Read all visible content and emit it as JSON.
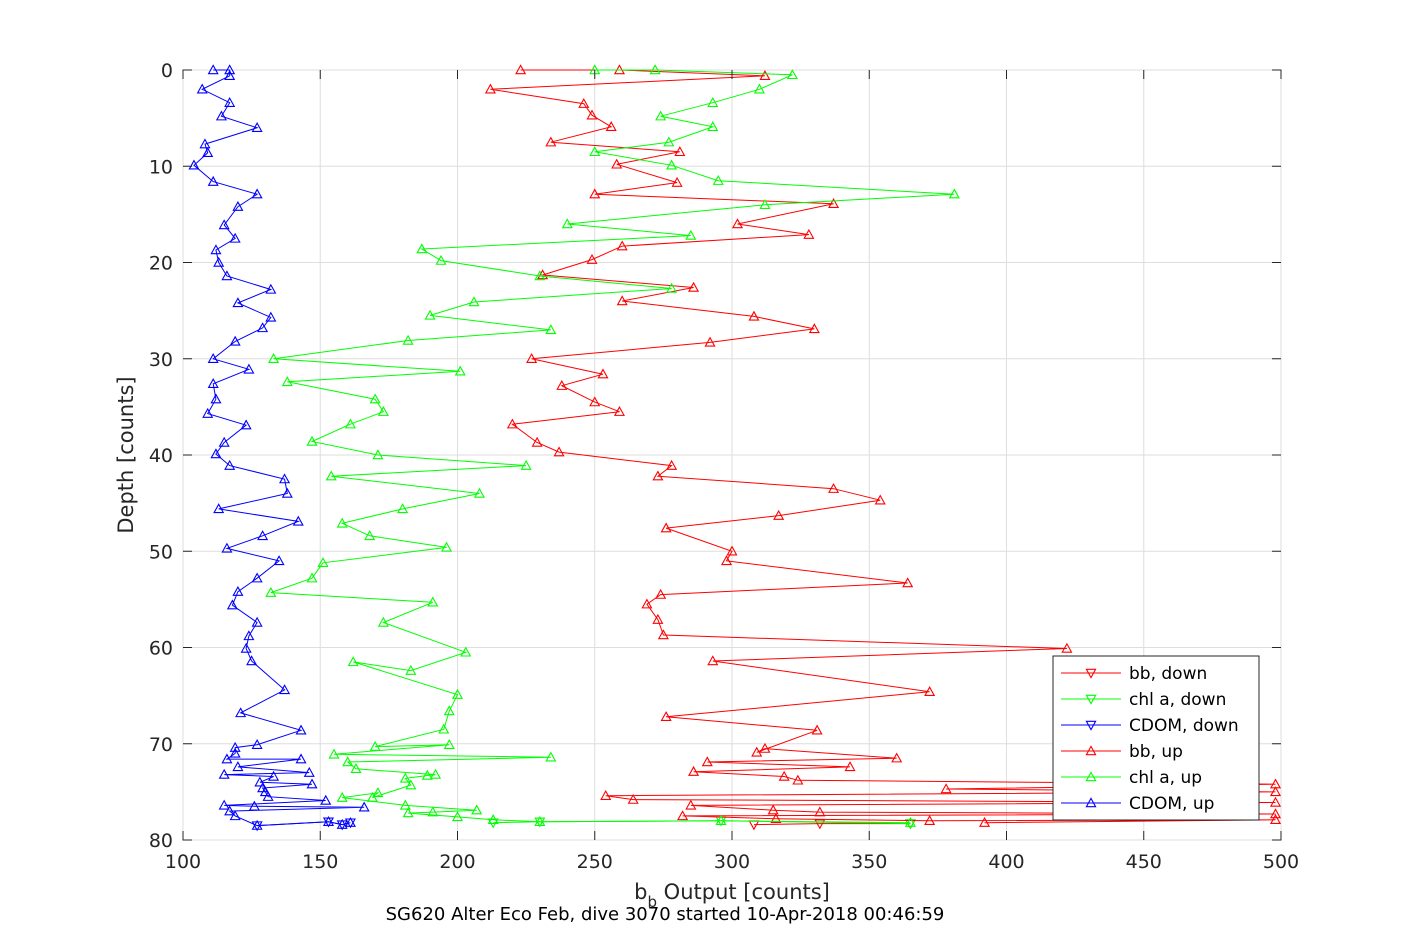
{
  "chart_data": {
    "type": "line",
    "xlabel_main": "b",
    "xlabel_sub": "b",
    "xlabel_rest": " Output [counts]",
    "ylabel": "Depth [counts]",
    "subtitle": "SG620 Alter Eco Feb, dive 3070 started 10-Apr-2018 00:46:59",
    "xlim": [
      100,
      500
    ],
    "ylim": [
      0,
      80
    ],
    "y_reversed": true,
    "grid": true,
    "legend_position": "bottom-right",
    "x_ticks": [
      100,
      150,
      200,
      250,
      300,
      350,
      400,
      450,
      500
    ],
    "y_ticks": [
      0,
      10,
      20,
      30,
      40,
      50,
      60,
      70,
      80
    ],
    "series": [
      {
        "name": "bb, down",
        "color": "#ff0000",
        "marker": "down",
        "points": [
          [
            308,
            78.4
          ],
          [
            332,
            78.3
          ],
          [
            365,
            78.3
          ]
        ]
      },
      {
        "name": "chl a, down",
        "color": "#00ff00",
        "marker": "down",
        "points": [
          [
            213,
            78.2
          ],
          [
            230,
            78.1
          ],
          [
            296,
            78.0
          ],
          [
            365,
            78.3
          ]
        ]
      },
      {
        "name": "CDOM, down",
        "color": "#0000ff",
        "marker": "down",
        "points": [
          [
            127,
            78.5
          ],
          [
            153,
            78.1
          ],
          [
            158,
            78.4
          ],
          [
            161,
            78.2
          ]
        ]
      },
      {
        "name": "bb, up",
        "color": "#ff0000",
        "marker": "up",
        "points": [
          [
            392,
            78.2
          ],
          [
            498,
            77.9
          ],
          [
            372,
            78.0
          ],
          [
            316,
            77.8
          ],
          [
            282,
            77.5
          ],
          [
            498,
            77.3
          ],
          [
            332,
            77.1
          ],
          [
            315,
            76.9
          ],
          [
            285,
            76.4
          ],
          [
            498,
            76.1
          ],
          [
            264,
            75.8
          ],
          [
            254,
            75.4
          ],
          [
            498,
            75.0
          ],
          [
            378,
            74.7
          ],
          [
            498,
            74.2
          ],
          [
            324,
            73.8
          ],
          [
            319,
            73.4
          ],
          [
            286,
            72.9
          ],
          [
            343,
            72.4
          ],
          [
            291,
            71.9
          ],
          [
            360,
            71.5
          ],
          [
            312,
            70.5
          ],
          [
            309,
            70.9
          ],
          [
            331,
            68.6
          ],
          [
            276,
            67.2
          ],
          [
            372,
            64.6
          ],
          [
            293,
            61.4
          ],
          [
            422,
            60.1
          ],
          [
            275,
            58.7
          ],
          [
            273,
            57.1
          ],
          [
            269,
            55.5
          ],
          [
            274,
            54.5
          ],
          [
            364,
            53.3
          ],
          [
            298,
            51.0
          ],
          [
            300,
            50.0
          ],
          [
            276,
            47.6
          ],
          [
            317,
            46.3
          ],
          [
            354,
            44.7
          ],
          [
            337,
            43.5
          ],
          [
            273,
            42.2
          ],
          [
            278,
            41.1
          ],
          [
            237,
            39.7
          ],
          [
            229,
            38.7
          ],
          [
            220,
            36.8
          ],
          [
            259,
            35.5
          ],
          [
            250,
            34.5
          ],
          [
            238,
            32.8
          ],
          [
            253,
            31.6
          ],
          [
            227,
            30.0
          ],
          [
            292,
            28.3
          ],
          [
            330,
            26.9
          ],
          [
            308,
            25.6
          ],
          [
            260,
            24.0
          ],
          [
            286,
            22.6
          ],
          [
            231,
            21.3
          ],
          [
            249,
            19.7
          ],
          [
            260,
            18.3
          ],
          [
            328,
            17.1
          ],
          [
            302,
            16.0
          ],
          [
            337,
            13.9
          ],
          [
            250,
            12.9
          ],
          [
            280,
            11.7
          ],
          [
            258,
            9.8
          ],
          [
            281,
            8.5
          ],
          [
            234,
            7.5
          ],
          [
            256,
            5.9
          ],
          [
            249,
            4.7
          ],
          [
            246,
            3.5
          ],
          [
            212,
            2.0
          ],
          [
            312,
            0.6
          ],
          [
            259,
            0.0
          ],
          [
            223,
            0.0
          ]
        ]
      },
      {
        "name": "chl a, up",
        "color": "#00ff00",
        "marker": "up",
        "points": [
          [
            365,
            78.2
          ],
          [
            296,
            78.0
          ],
          [
            230,
            78.1
          ],
          [
            213,
            77.9
          ],
          [
            200,
            77.6
          ],
          [
            182,
            77.2
          ],
          [
            191,
            77.1
          ],
          [
            207,
            76.9
          ],
          [
            181,
            76.4
          ],
          [
            158,
            75.6
          ],
          [
            171,
            75.1
          ],
          [
            169,
            75.6
          ],
          [
            183,
            74.3
          ],
          [
            181,
            73.6
          ],
          [
            189,
            73.3
          ],
          [
            192,
            73.2
          ],
          [
            163,
            72.6
          ],
          [
            160,
            71.9
          ],
          [
            234,
            71.4
          ],
          [
            155,
            71.1
          ],
          [
            197,
            70.1
          ],
          [
            170,
            70.3
          ],
          [
            195,
            68.5
          ],
          [
            197,
            66.6
          ],
          [
            200,
            64.9
          ],
          [
            162,
            61.5
          ],
          [
            183,
            62.4
          ],
          [
            203,
            60.5
          ],
          [
            173,
            57.4
          ],
          [
            191,
            55.3
          ],
          [
            132,
            54.3
          ],
          [
            147,
            52.8
          ],
          [
            151,
            51.2
          ],
          [
            196,
            49.6
          ],
          [
            168,
            48.4
          ],
          [
            158,
            47.1
          ],
          [
            180,
            45.6
          ],
          [
            208,
            44.0
          ],
          [
            154,
            42.2
          ],
          [
            225,
            41.1
          ],
          [
            171,
            40.0
          ],
          [
            147,
            38.6
          ],
          [
            161,
            36.8
          ],
          [
            173,
            35.5
          ],
          [
            170,
            34.2
          ],
          [
            138,
            32.4
          ],
          [
            201,
            31.3
          ],
          [
            133,
            30.0
          ],
          [
            182,
            28.1
          ],
          [
            234,
            27.0
          ],
          [
            190,
            25.5
          ],
          [
            206,
            24.1
          ],
          [
            278,
            22.7
          ],
          [
            230,
            21.4
          ],
          [
            194,
            19.8
          ],
          [
            187,
            18.6
          ],
          [
            285,
            17.2
          ],
          [
            240,
            16.0
          ],
          [
            312,
            14.0
          ],
          [
            381,
            12.9
          ],
          [
            295,
            11.5
          ],
          [
            278,
            9.9
          ],
          [
            250,
            8.5
          ],
          [
            277,
            7.5
          ],
          [
            293,
            5.9
          ],
          [
            274,
            4.8
          ],
          [
            293,
            3.4
          ],
          [
            310,
            2.0
          ],
          [
            322,
            0.5
          ],
          [
            272,
            0.0
          ],
          [
            250,
            0.0
          ]
        ]
      },
      {
        "name": "CDOM, up",
        "color": "#0000ff",
        "marker": "up",
        "points": [
          [
            161,
            78.2
          ],
          [
            158,
            78.4
          ],
          [
            153,
            78.1
          ],
          [
            127,
            78.5
          ],
          [
            119,
            77.5
          ],
          [
            117,
            77.0
          ],
          [
            166,
            76.6
          ],
          [
            126,
            76.5
          ],
          [
            115,
            76.4
          ],
          [
            152,
            75.9
          ],
          [
            131,
            75.5
          ],
          [
            130,
            75.0
          ],
          [
            129,
            74.6
          ],
          [
            147,
            74.2
          ],
          [
            128,
            74.0
          ],
          [
            133,
            73.4
          ],
          [
            115,
            73.2
          ],
          [
            146,
            73.0
          ],
          [
            120,
            72.4
          ],
          [
            143,
            71.6
          ],
          [
            116,
            71.6
          ],
          [
            119,
            71.0
          ],
          [
            119,
            70.4
          ],
          [
            127,
            70.1
          ],
          [
            143,
            68.6
          ],
          [
            121,
            66.8
          ],
          [
            137,
            64.4
          ],
          [
            125,
            61.4
          ],
          [
            123,
            60.1
          ],
          [
            124,
            58.8
          ],
          [
            127,
            57.4
          ],
          [
            118,
            55.6
          ],
          [
            120,
            54.2
          ],
          [
            127,
            52.8
          ],
          [
            135,
            51.0
          ],
          [
            116,
            49.7
          ],
          [
            129,
            48.4
          ],
          [
            142,
            46.9
          ],
          [
            113,
            45.6
          ],
          [
            138,
            44.0
          ],
          [
            137,
            42.5
          ],
          [
            117,
            41.1
          ],
          [
            112,
            39.9
          ],
          [
            115,
            38.7
          ],
          [
            123,
            36.9
          ],
          [
            109,
            35.7
          ],
          [
            112,
            34.2
          ],
          [
            111,
            32.6
          ],
          [
            124,
            31.1
          ],
          [
            111,
            30.0
          ],
          [
            119,
            28.2
          ],
          [
            129,
            26.8
          ],
          [
            132,
            25.7
          ],
          [
            120,
            24.2
          ],
          [
            132,
            22.8
          ],
          [
            116,
            21.4
          ],
          [
            113,
            20.0
          ],
          [
            112,
            18.7
          ],
          [
            119,
            17.5
          ],
          [
            115,
            16.1
          ],
          [
            120,
            14.2
          ],
          [
            127,
            12.9
          ],
          [
            111,
            11.6
          ],
          [
            104,
            9.9
          ],
          [
            109,
            8.6
          ],
          [
            108,
            7.7
          ],
          [
            127,
            6.0
          ],
          [
            114,
            4.8
          ],
          [
            117,
            3.4
          ],
          [
            107,
            2.0
          ],
          [
            117,
            0.6
          ],
          [
            117,
            0.0
          ],
          [
            111,
            0.0
          ]
        ]
      }
    ]
  }
}
